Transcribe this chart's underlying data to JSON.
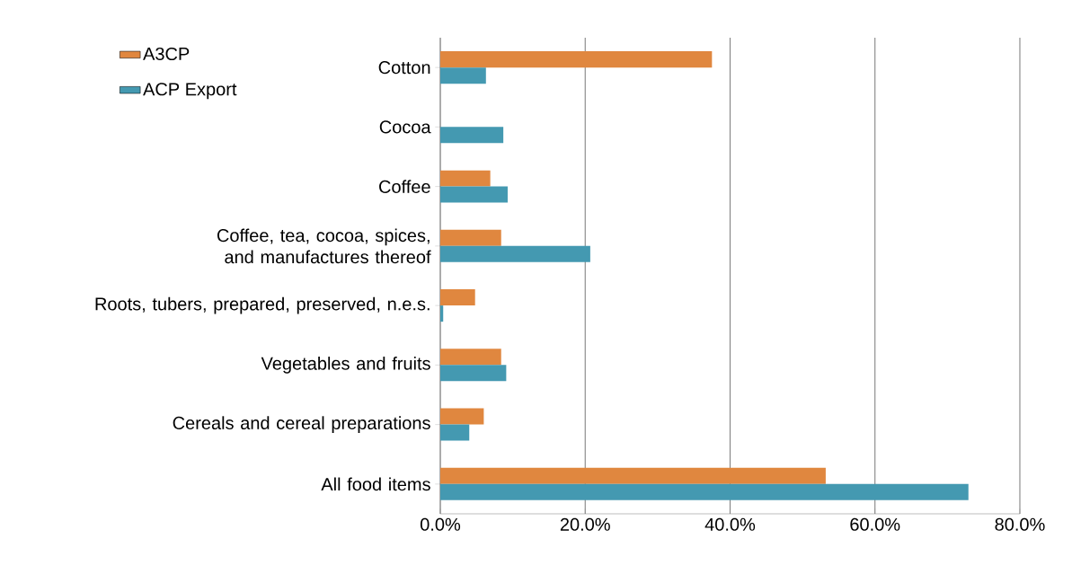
{
  "chart_data": {
    "type": "bar",
    "orientation": "horizontal",
    "categories": [
      "Cotton",
      "Cocoa",
      "Coffee",
      "Coffee, tea, cocoa, spices, and manufactures thereof",
      "Roots, tubers, prepared, preserved, n.e.s.",
      "Vegetables and fruits",
      "Cereals and cereal preparations",
      "All food items"
    ],
    "series": [
      {
        "name": "A3CP",
        "color": "#e0873f",
        "values": [
          37.5,
          0,
          6.9,
          8.4,
          4.8,
          8.4,
          6.0,
          53.2
        ]
      },
      {
        "name": "ACP Export",
        "color": "#4499b1",
        "values": [
          6.3,
          8.7,
          9.3,
          20.7,
          0.4,
          9.1,
          4.0,
          72.9
        ]
      }
    ],
    "xlim": [
      0,
      80
    ],
    "xticks": [
      {
        "value": 0,
        "label": "0.0%"
      },
      {
        "value": 20,
        "label": "20.0%"
      },
      {
        "value": 40,
        "label": "40.0%"
      },
      {
        "value": 60,
        "label": "60.0%"
      },
      {
        "value": 80,
        "label": "80.0%"
      }
    ],
    "grid": "x",
    "legend": "top left"
  }
}
